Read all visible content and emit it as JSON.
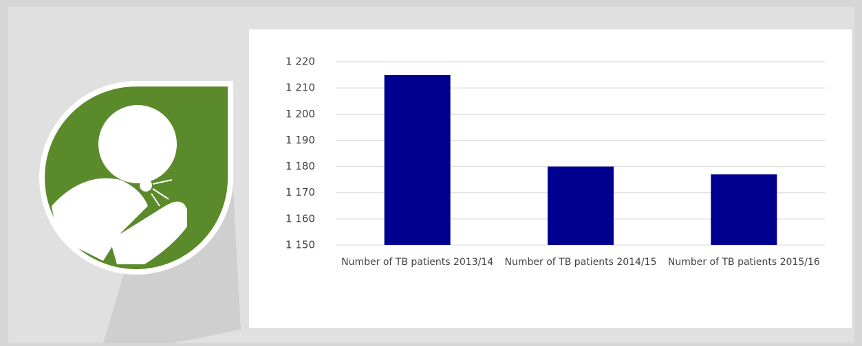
{
  "chart_data": {
    "type": "bar",
    "categories": [
      "Number of TB patients 2013/14",
      "Number of TB patients 2014/15",
      "Number of TB patients 2015/16"
    ],
    "values": [
      1215,
      1180,
      1177
    ],
    "color": "#000090",
    "ylim": [
      1150,
      1220
    ],
    "yticks": [
      {
        "value": 1150,
        "label": "1 150"
      },
      {
        "value": 1160,
        "label": "1 160"
      },
      {
        "value": 1170,
        "label": "1 170"
      },
      {
        "value": 1180,
        "label": "1 180"
      },
      {
        "value": 1190,
        "label": "1 190"
      },
      {
        "value": 1200,
        "label": "1 200"
      },
      {
        "value": 1210,
        "label": "1 210"
      },
      {
        "value": 1220,
        "label": "1 220"
      }
    ],
    "grid": true
  }
}
